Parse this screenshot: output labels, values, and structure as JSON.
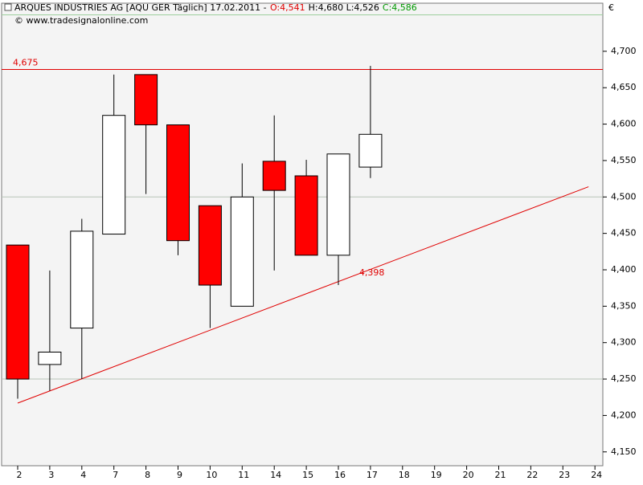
{
  "chart_data": {
    "type": "candlestick",
    "title": "ARQUES INDUSTRIES AG [AQU GER  Täglich] 17.02.2011 -",
    "title_values": [
      {
        "label": "O:4,541",
        "color": "#e00000"
      },
      {
        "label": "H:4,680 L:4,526",
        "color": "#000000"
      },
      {
        "label": "C:4,586",
        "color": "#009900"
      }
    ],
    "subtitle": "© www.tradesignalonline.com",
    "currency": "€",
    "categories": [
      "2",
      "3",
      "4",
      "7",
      "8",
      "9",
      "10",
      "11",
      "14",
      "15",
      "16",
      "17",
      "18",
      "19",
      "20",
      "21",
      "22",
      "23",
      "24"
    ],
    "open": [
      4.434,
      4.27,
      4.32,
      4.449,
      4.668,
      4.599,
      4.488,
      4.35,
      4.549,
      4.529,
      4.42,
      4.541,
      null,
      null,
      null,
      null,
      null,
      null,
      null
    ],
    "high": [
      4.434,
      4.399,
      4.47,
      4.668,
      4.668,
      4.599,
      4.488,
      4.546,
      4.612,
      4.551,
      4.559,
      4.68,
      null,
      null,
      null,
      null,
      null,
      null,
      null
    ],
    "low": [
      4.223,
      4.234,
      4.25,
      4.449,
      4.504,
      4.42,
      4.32,
      4.35,
      4.399,
      4.42,
      4.379,
      4.526,
      null,
      null,
      null,
      null,
      null,
      null,
      null
    ],
    "close": [
      4.25,
      4.287,
      4.453,
      4.612,
      4.599,
      4.44,
      4.379,
      4.5,
      4.509,
      4.42,
      4.559,
      4.586,
      null,
      null,
      null,
      null,
      null,
      null,
      null
    ],
    "up_color": "#ffffff",
    "down_color": "#ff0000",
    "ylim": [
      4.131,
      4.766
    ],
    "yticks": [
      {
        "value": 4.15,
        "label": "4,150"
      },
      {
        "value": 4.2,
        "label": "4,200"
      },
      {
        "value": 4.25,
        "label": "4,250"
      },
      {
        "value": 4.3,
        "label": "4,300"
      },
      {
        "value": 4.35,
        "label": "4,350"
      },
      {
        "value": 4.4,
        "label": "4,400"
      },
      {
        "value": 4.45,
        "label": "4,450"
      },
      {
        "value": 4.5,
        "label": "4,500"
      },
      {
        "value": 4.55,
        "label": "4,550"
      },
      {
        "value": 4.6,
        "label": "4,600"
      },
      {
        "value": 4.65,
        "label": "4,650"
      },
      {
        "value": 4.7,
        "label": "4,700"
      }
    ],
    "reference_lines": [
      {
        "value": 4.25,
        "color": "#b8c4b8"
      },
      {
        "value": 4.5,
        "color": "#b8c4b8"
      },
      {
        "value": 4.75,
        "color": "#9ccf9c"
      }
    ],
    "resistance": {
      "value": 4.675,
      "label": "4,675",
      "color": "#e00000"
    },
    "trendline": {
      "x": [
        0,
        17.8
      ],
      "values": [
        4.217,
        4.514
      ],
      "color": "#e00000",
      "annotation": {
        "x": 10.9,
        "value": 4.398,
        "label": "4,398"
      }
    }
  }
}
